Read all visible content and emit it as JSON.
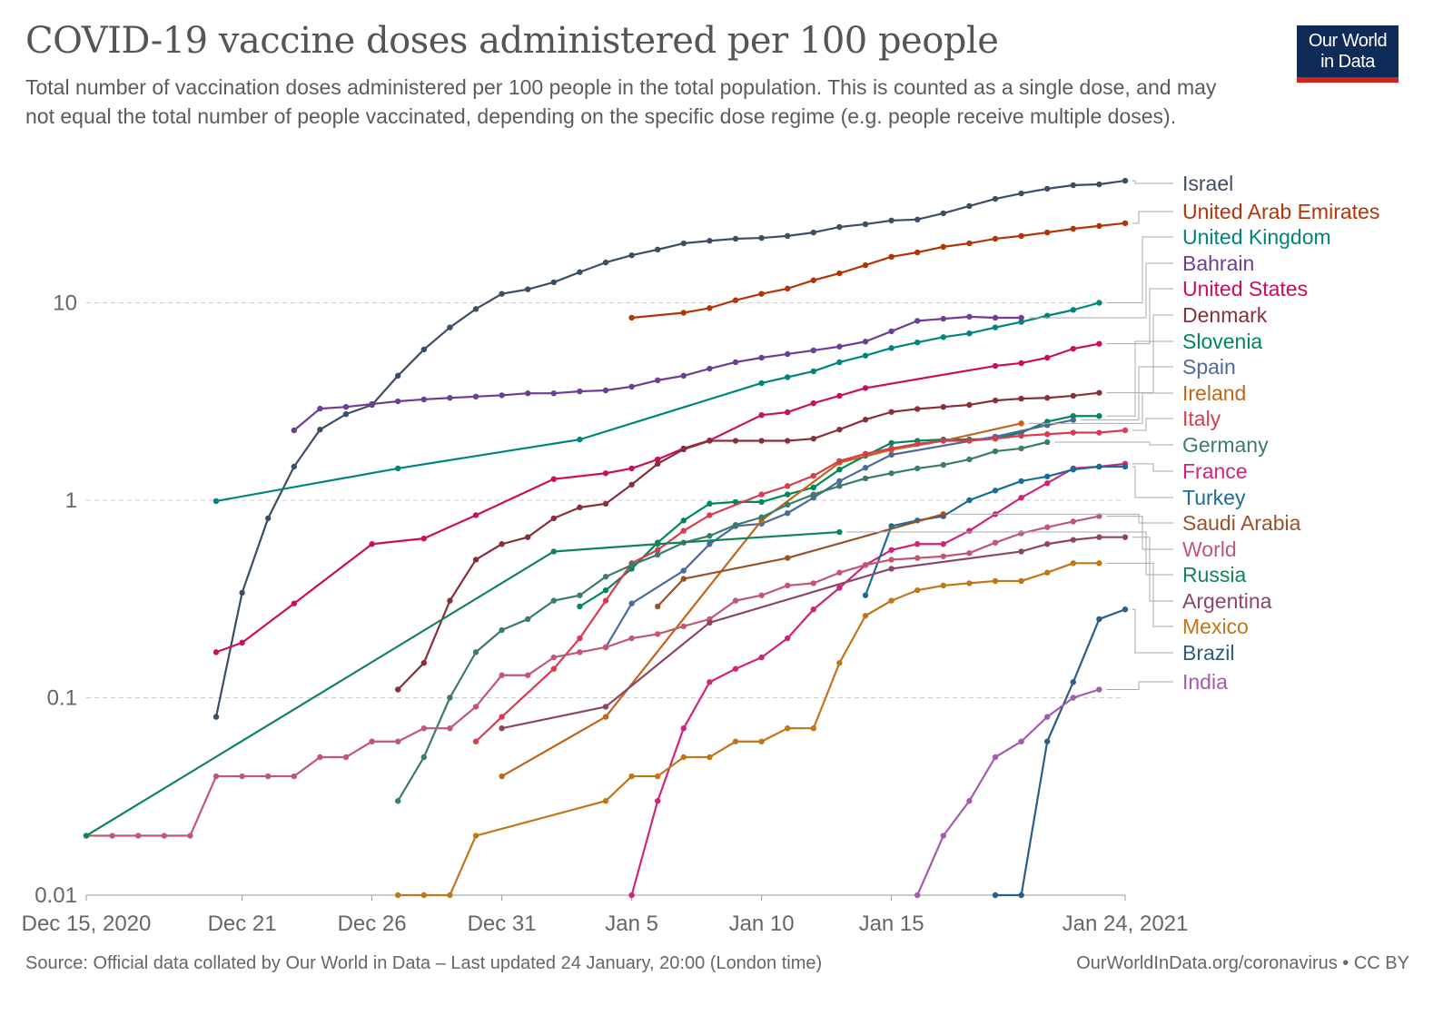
{
  "header": {
    "title": "COVID-19 vaccine doses administered per 100 people",
    "subtitle": "Total number of vaccination doses administered per 100 people in the total population. This is counted as a single dose, and may not equal the total number of people vaccinated, depending on the specific dose regime (e.g. people receive multiple doses).",
    "logo_line1": "Our World",
    "logo_line2": "in Data",
    "logo_colors": {
      "background": "#0f2b57",
      "stripe": "#ce261e"
    }
  },
  "footer": {
    "source": "Source: Official data collated by Our World in Data – Last updated 24 January, 20:00 (London time)",
    "link": "OurWorldInData.org/coronavirus • CC BY"
  },
  "chart_data": {
    "type": "line",
    "y_scale": "log",
    "ylim": [
      0.01,
      45
    ],
    "xlim": [
      "2020-12-15",
      "2021-01-24"
    ],
    "grid": "horizontal dashed",
    "legend": "right (labels at line ends)",
    "y_ticks": [
      {
        "value": 0.01,
        "label": "0.01"
      },
      {
        "value": 0.1,
        "label": "0.1"
      },
      {
        "value": 1,
        "label": "1"
      },
      {
        "value": 10,
        "label": "10"
      }
    ],
    "x_ticks": [
      {
        "date": "2020-12-15",
        "label": "Dec 15, 2020"
      },
      {
        "date": "2020-12-21",
        "label": "Dec 21"
      },
      {
        "date": "2020-12-26",
        "label": "Dec 26"
      },
      {
        "date": "2020-12-31",
        "label": "Dec 31"
      },
      {
        "date": "2021-01-05",
        "label": "Jan 5"
      },
      {
        "date": "2021-01-10",
        "label": "Jan 10"
      },
      {
        "date": "2021-01-15",
        "label": "Jan 15"
      },
      {
        "date": "2021-01-24",
        "label": "Jan 24, 2021"
      }
    ],
    "series": [
      {
        "name": "Israel",
        "color": "#3c4e66",
        "start": "2020-12-20",
        "values": [
          0.08,
          0.34,
          0.81,
          1.48,
          2.28,
          2.73,
          3.04,
          4.27,
          5.8,
          7.5,
          9.3,
          11.1,
          11.7,
          12.7,
          14.3,
          16,
          17.4,
          18.6,
          20,
          20.6,
          21.1,
          21.3,
          21.8,
          22.7,
          24.2,
          25,
          26.1,
          26.4,
          28.4,
          30.9,
          33.6,
          35.8,
          37.8,
          39.4,
          39.8,
          41.5
        ]
      },
      {
        "name": "United Arab Emirates",
        "color": "#b13507",
        "start": "2021-01-05",
        "values": [
          8.4,
          null,
          8.9,
          9.4,
          10.3,
          11.1,
          11.8,
          13,
          14.1,
          15.5,
          17.1,
          18,
          19.2,
          20,
          21.1,
          21.8,
          22.7,
          23.7,
          24.5,
          25.3
        ]
      },
      {
        "name": "United Kingdom",
        "color": "#00847e",
        "start": "2020-12-20",
        "values": [
          0.99,
          null,
          null,
          null,
          null,
          null,
          null,
          1.45,
          null,
          null,
          null,
          null,
          null,
          null,
          2.03,
          null,
          null,
          null,
          null,
          null,
          null,
          3.92,
          4.2,
          4.5,
          5.0,
          5.4,
          5.9,
          6.3,
          6.7,
          7.0,
          7.5,
          8.0,
          8.6,
          9.2,
          10.0
        ]
      },
      {
        "name": "Bahrain",
        "color": "#6d3e91",
        "start": "2020-12-23",
        "values": [
          2.26,
          2.91,
          2.97,
          3.07,
          3.17,
          3.24,
          3.3,
          3.35,
          3.4,
          3.48,
          3.48,
          3.56,
          3.6,
          3.76,
          4.05,
          4.27,
          4.64,
          5.0,
          5.27,
          5.5,
          5.74,
          6.0,
          6.36,
          7.17,
          8.1,
          8.3,
          8.5,
          8.4,
          8.4
        ]
      },
      {
        "name": "United States",
        "color": "#ca0e5c",
        "start": "2020-12-20",
        "values": [
          0.17,
          0.19,
          null,
          0.3,
          null,
          null,
          0.6,
          null,
          0.64,
          null,
          0.84,
          null,
          null,
          1.28,
          null,
          1.37,
          1.45,
          1.61,
          1.83,
          2.01,
          null,
          2.7,
          2.79,
          3.1,
          3.38,
          3.7,
          null,
          null,
          null,
          null,
          4.79,
          4.95,
          5.27,
          5.85,
          6.2
        ]
      },
      {
        "name": "Denmark",
        "color": "#883039",
        "start": "2020-12-27",
        "values": [
          0.11,
          0.15,
          0.31,
          0.5,
          0.6,
          0.65,
          0.81,
          0.92,
          0.96,
          1.2,
          1.53,
          1.81,
          2.0,
          2.0,
          2.0,
          2.0,
          2.05,
          2.28,
          2.56,
          2.8,
          2.9,
          2.97,
          3.04,
          3.2,
          3.27,
          3.3,
          3.38,
          3.5
        ]
      },
      {
        "name": "Slovenia",
        "color": "#00875a",
        "start": "2021-01-03",
        "values": [
          0.29,
          0.35,
          0.45,
          0.61,
          0.79,
          0.96,
          0.98,
          0.98,
          1.07,
          1.16,
          1.43,
          1.68,
          1.95,
          2.0,
          2.03,
          2.03,
          2.05,
          2.2,
          2.5,
          2.67,
          2.67
        ]
      },
      {
        "name": "Spain",
        "color": "#4c6a9c",
        "start": "2021-01-04",
        "values": [
          0.18,
          0.3,
          null,
          0.44,
          0.6,
          0.74,
          0.76,
          0.86,
          1.03,
          1.25,
          1.46,
          1.7,
          null,
          null,
          null,
          2.1,
          null,
          2.4,
          2.55
        ]
      },
      {
        "name": "Ireland",
        "color": "#c0661a",
        "start": "2020-12-31",
        "values": [
          0.04,
          null,
          null,
          null,
          0.08,
          null,
          null,
          null,
          null,
          null,
          0.79,
          null,
          null,
          1.55,
          null,
          1.8,
          null,
          2.0,
          null,
          null,
          2.45
        ]
      },
      {
        "name": "Italy",
        "color": "#d73c50",
        "start": "2020-12-30",
        "values": [
          0.06,
          0.08,
          null,
          0.14,
          0.2,
          0.31,
          0.48,
          0.56,
          0.7,
          0.84,
          null,
          1.07,
          1.18,
          1.33,
          1.58,
          1.72,
          1.83,
          1.93,
          2.0,
          2.0,
          2.05,
          2.12,
          2.16,
          2.2,
          2.2,
          2.26
        ]
      },
      {
        "name": "Germany",
        "color": "#3a7d68",
        "start": "2020-12-27",
        "values": [
          0.03,
          0.05,
          0.1,
          0.17,
          0.22,
          0.25,
          0.31,
          0.33,
          0.41,
          0.47,
          0.53,
          0.61,
          0.66,
          0.75,
          0.82,
          0.95,
          1.07,
          1.18,
          1.29,
          1.37,
          1.45,
          1.51,
          1.61,
          1.77,
          1.83,
          1.97
        ]
      },
      {
        "name": "France",
        "color": "#d0247a",
        "start": "2021-01-05",
        "values": [
          0.01,
          0.03,
          0.07,
          0.12,
          0.14,
          0.16,
          0.2,
          0.28,
          0.36,
          0.47,
          0.56,
          0.6,
          0.6,
          0.7,
          0.85,
          1.03,
          1.22,
          1.45,
          1.48,
          1.53
        ]
      },
      {
        "name": "Turkey",
        "color": "#1a6c98",
        "start": "2021-01-14",
        "values": [
          0.33,
          0.74,
          0.79,
          0.83,
          1.0,
          1.12,
          1.25,
          1.32,
          1.43,
          1.48,
          1.48
        ]
      },
      {
        "name": "Saudi Arabia",
        "color": "#9a5129",
        "start": "2021-01-06",
        "values": [
          0.29,
          0.4,
          null,
          null,
          null,
          0.51,
          null,
          null,
          null,
          null,
          null,
          0.85
        ]
      },
      {
        "name": "World",
        "color": "#c05872",
        "start": "2020-12-15",
        "values": [
          0.02,
          0.02,
          0.02,
          0.02,
          0.02,
          0.04,
          0.04,
          0.04,
          0.04,
          0.05,
          0.05,
          0.06,
          0.06,
          0.07,
          0.07,
          0.09,
          0.13,
          0.13,
          0.16,
          0.17,
          0.18,
          0.2,
          0.21,
          0.23,
          0.25,
          0.31,
          0.33,
          0.37,
          0.38,
          0.43,
          0.47,
          0.5,
          0.51,
          0.52,
          0.54,
          0.61,
          0.68,
          0.73,
          0.78,
          0.83
        ]
      },
      {
        "name": "Russia",
        "color": "#0f8554",
        "start": "2020-12-15",
        "values": [
          0.02,
          null,
          null,
          null,
          null,
          null,
          null,
          null,
          null,
          null,
          null,
          null,
          null,
          null,
          null,
          null,
          null,
          null,
          0.55,
          null,
          null,
          null,
          0.6,
          null,
          null,
          null,
          null,
          null,
          null,
          0.69
        ]
      },
      {
        "name": "Argentina",
        "color": "#8c4569",
        "start": "2020-12-31",
        "values": [
          0.07,
          null,
          null,
          null,
          0.09,
          null,
          null,
          null,
          0.24,
          null,
          null,
          null,
          null,
          null,
          null,
          0.45,
          null,
          null,
          null,
          null,
          0.55,
          0.6,
          0.63,
          0.65,
          0.65
        ]
      },
      {
        "name": "Mexico",
        "color": "#c0761a",
        "start": "2020-12-27",
        "values": [
          0.01,
          0.01,
          0.01,
          0.02,
          null,
          null,
          null,
          null,
          0.03,
          0.04,
          0.04,
          0.05,
          0.05,
          0.06,
          0.06,
          0.07,
          0.07,
          0.15,
          0.26,
          0.31,
          0.35,
          0.37,
          0.38,
          0.39,
          0.39,
          0.43,
          0.48,
          0.48
        ]
      },
      {
        "name": "Brazil",
        "color": "#2d5d82",
        "start": "2021-01-19",
        "values": [
          0.01,
          0.01,
          0.06,
          0.12,
          0.25,
          0.28
        ]
      },
      {
        "name": "India",
        "color": "#a65aaf",
        "start": "2021-01-16",
        "values": [
          0.01,
          0.02,
          0.03,
          0.05,
          0.06,
          0.08,
          0.1,
          0.11
        ]
      }
    ]
  }
}
